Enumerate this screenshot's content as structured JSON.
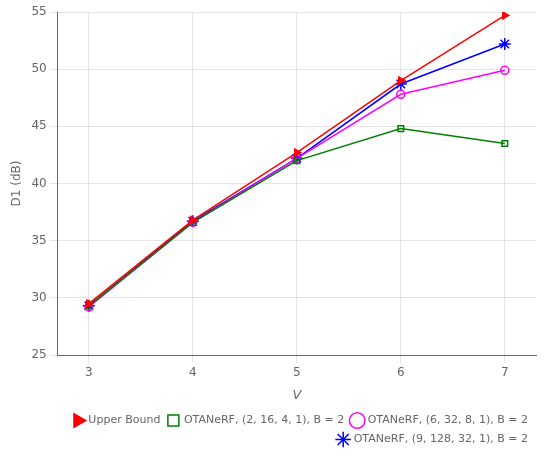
{
  "chart_data": {
    "type": "line",
    "x": [
      3,
      4,
      5,
      6,
      7
    ],
    "series": [
      {
        "name": "Upper Bound",
        "color": "#ff0000",
        "marker": "triangle-right",
        "values": [
          29.5,
          36.8,
          42.7,
          49.0,
          54.7
        ]
      },
      {
        "name": "OTANeRF, (2, 16, 4, 1), B = 2",
        "color": "#008000",
        "marker": "square-open",
        "values": [
          29.3,
          36.6,
          42.0,
          44.8,
          43.5
        ]
      },
      {
        "name": "OTANeRF, (6, 32, 8, 1), B = 2",
        "color": "#ff00ff",
        "marker": "circle-open",
        "values": [
          29.2,
          36.6,
          42.2,
          47.8,
          49.9
        ]
      },
      {
        "name": "OTANeRF, (9, 128, 32, 1), B = 2",
        "color": "#0000ff",
        "marker": "star",
        "values": [
          29.3,
          36.7,
          42.2,
          48.7,
          52.2
        ]
      }
    ],
    "x_label": "V",
    "y_label": "D1 (dB)",
    "xlim": [
      2.7,
      7.3
    ],
    "ylim": [
      25,
      55
    ],
    "xticks": [
      3,
      4,
      5,
      6,
      7
    ],
    "yticks": [
      25,
      30,
      35,
      40,
      45,
      50,
      55
    ],
    "grid": true,
    "legend": "lower right"
  }
}
